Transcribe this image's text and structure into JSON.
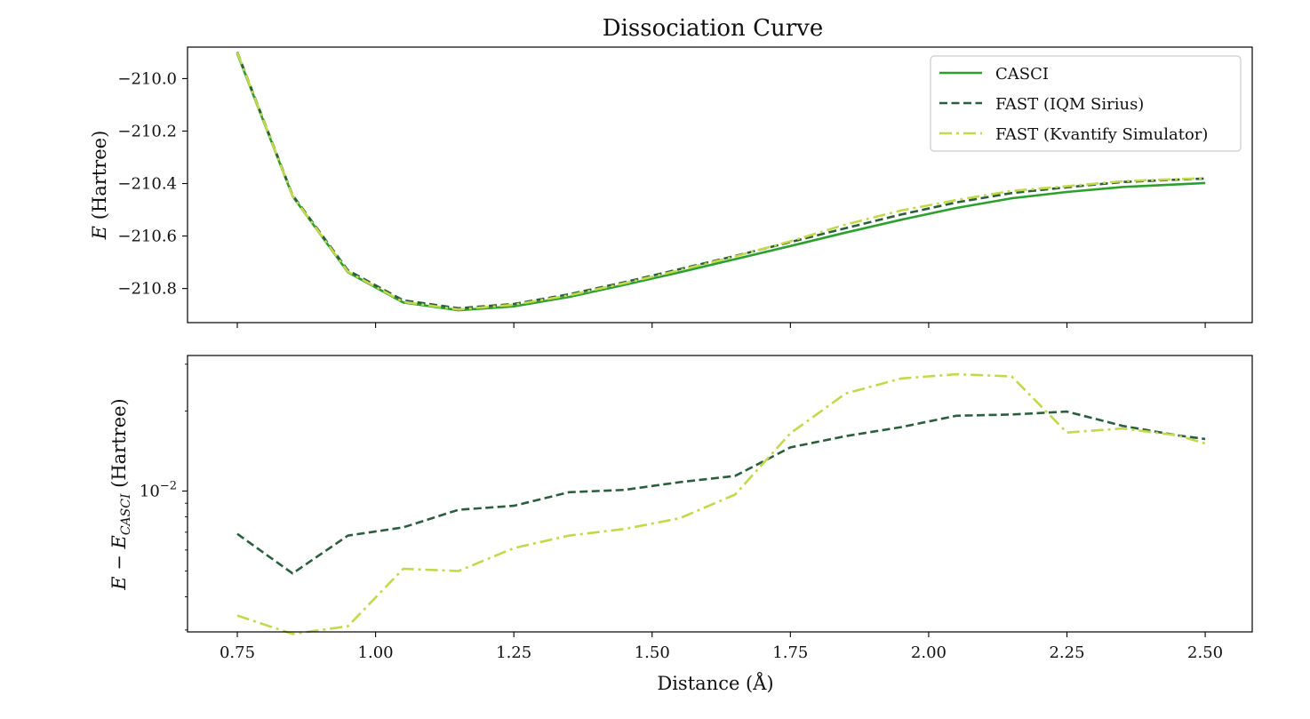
{
  "figure_title": "Dissociation Curve",
  "chart_data": [
    {
      "type": "line",
      "panel": "top",
      "title": "Dissociation Curve",
      "xlabel": "",
      "ylabel_var": "E",
      "ylabel_rest": " (Hartree)",
      "xlim": [
        0.66,
        2.585
      ],
      "ylim": [
        -210.93,
        -209.88
      ],
      "yscale": "linear",
      "yticks": [
        -210.0,
        -210.2,
        -210.4,
        -210.6,
        -210.8
      ],
      "ytick_labels": [
        "−210.0",
        "−210.2",
        "−210.4",
        "−210.6",
        "−210.8"
      ],
      "xticks": [
        0.75,
        1.0,
        1.25,
        1.5,
        1.75,
        2.0,
        2.25,
        2.5
      ],
      "x": [
        0.75,
        0.85,
        0.95,
        1.05,
        1.15,
        1.25,
        1.35,
        1.45,
        1.55,
        1.65,
        1.75,
        1.85,
        1.95,
        2.05,
        2.15,
        2.25,
        2.35,
        2.45,
        2.5
      ],
      "series": [
        {
          "name": "CASCI",
          "color": "#2ca02c",
          "dash": "solid",
          "values": [
            -209.905,
            -210.448,
            -210.738,
            -210.853,
            -210.883,
            -210.868,
            -210.832,
            -210.786,
            -210.738,
            -210.688,
            -210.638,
            -210.587,
            -210.538,
            -210.493,
            -210.456,
            -210.432,
            -210.413,
            -210.403,
            -210.398
          ]
        },
        {
          "name": "FAST (IQM Sirius)",
          "color": "#2b5e3c",
          "dash": "dashed",
          "values": [
            -209.899,
            -210.444,
            -210.731,
            -210.845,
            -210.875,
            -210.859,
            -210.822,
            -210.776,
            -210.726,
            -210.676,
            -210.623,
            -210.57,
            -210.518,
            -210.472,
            -210.436,
            -210.414,
            -210.394,
            -210.385,
            -210.381
          ]
        },
        {
          "name": "FAST (Kvantify Simulator)",
          "color": "#c2d94a",
          "dash": "dashdot",
          "values": [
            -209.901,
            -210.447,
            -210.736,
            -210.851,
            -210.88,
            -210.862,
            -210.826,
            -210.78,
            -210.73,
            -210.678,
            -210.62,
            -210.556,
            -210.503,
            -210.463,
            -210.428,
            -210.41,
            -210.391,
            -210.383,
            -210.38
          ]
        }
      ],
      "legend": {
        "location": "top-right",
        "entries": [
          "CASCI",
          "FAST (IQM Sirius)",
          "FAST (Kvantify Simulator)"
        ]
      }
    },
    {
      "type": "line",
      "panel": "bottom",
      "xlabel": "Distance (Å)",
      "ylabel_main": "E − E",
      "ylabel_sub": "CASCI",
      "ylabel_rest": " (Hartree)",
      "xlim": [
        0.66,
        2.585
      ],
      "ylim_log10": [
        -2.53,
        -1.49
      ],
      "yscale": "log",
      "ytick_label": "10",
      "ytick_exp": "−2",
      "xticks": [
        0.75,
        1.0,
        1.25,
        1.5,
        1.75,
        2.0,
        2.25,
        2.5
      ],
      "xtick_labels": [
        "0.75",
        "1.00",
        "1.25",
        "1.50",
        "1.75",
        "2.00",
        "2.25",
        "2.50"
      ],
      "x": [
        0.75,
        0.85,
        0.95,
        1.05,
        1.15,
        1.25,
        1.35,
        1.45,
        1.55,
        1.65,
        1.75,
        1.85,
        1.95,
        2.05,
        2.15,
        2.25,
        2.35,
        2.45,
        2.5
      ],
      "series": [
        {
          "name": "FAST (IQM Sirius)",
          "color": "#2b5e3c",
          "dash": "dashed",
          "values": [
            0.0069,
            0.0049,
            0.0068,
            0.0073,
            0.0085,
            0.0088,
            0.0099,
            0.0101,
            0.0108,
            0.0114,
            0.0146,
            0.0161,
            0.0174,
            0.0192,
            0.0194,
            0.0199,
            0.0176,
            0.0162,
            0.0157
          ]
        },
        {
          "name": "FAST (Kvantify Simulator)",
          "color": "#c2d94a",
          "dash": "dashdot",
          "values": [
            0.0034,
            0.0029,
            0.0031,
            0.0051,
            0.005,
            0.0061,
            0.0068,
            0.0072,
            0.0079,
            0.0097,
            0.0165,
            0.0233,
            0.0265,
            0.0275,
            0.027,
            0.0166,
            0.0172,
            0.0162,
            0.0151
          ]
        }
      ]
    }
  ]
}
